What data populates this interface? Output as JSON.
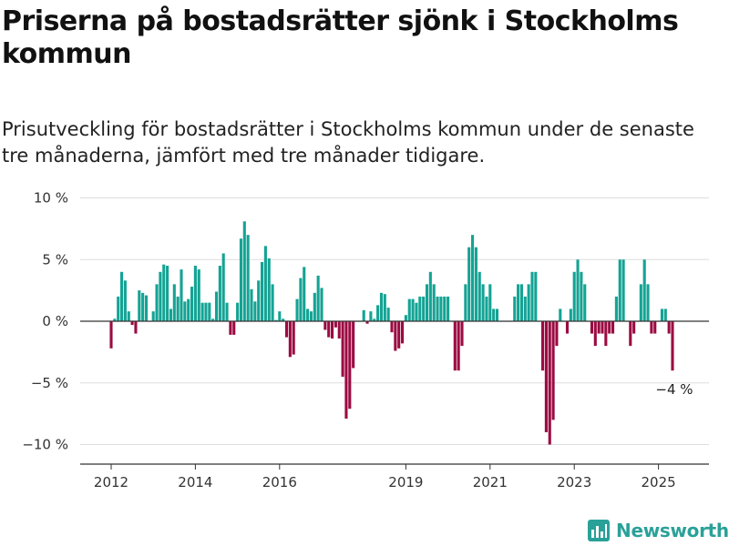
{
  "header": {
    "title": "Priserna på bostadsrätter sjönk i Stockholms kommun",
    "subtitle": "Prisutveckling för bostadsrätter i Stockholms kommun under de senaste tre månaderna, jämfört med tre månader tidigare."
  },
  "logo": {
    "text": "Newsworthy",
    "icon": "bar-chart-logo-icon"
  },
  "colors": {
    "positive": "#14a394",
    "negative": "#9b0b42",
    "grid": "#dddddd",
    "axis": "#333333"
  },
  "chart_data": {
    "type": "bar",
    "title": "Priserna på bostadsrätter sjönk i Stockholms kommun",
    "subtitle": "Prisutveckling för bostadsrätter i Stockholms kommun under de senaste tre månaderna, jämfört med tre månader tidigare.",
    "x_start": "2012-01",
    "x_ticks": [
      2012,
      2014,
      2016,
      2019,
      2021,
      2023,
      2025
    ],
    "y_ticks": [
      10,
      5,
      0,
      -5,
      -10
    ],
    "y_tick_labels": [
      "10 %",
      "5 %",
      "0 %",
      "−5 %",
      "−10 %"
    ],
    "ylim": [
      -12,
      10
    ],
    "ylabel": "",
    "xlabel": "",
    "annotation": "−4 %",
    "grid": true,
    "values": [
      -2.2,
      0.2,
      2.0,
      4.0,
      3.3,
      0.8,
      -0.3,
      -1.0,
      2.5,
      2.3,
      2.1,
      0.0,
      0.8,
      3.0,
      4.0,
      4.6,
      4.5,
      1.0,
      3.0,
      2.0,
      4.2,
      1.6,
      1.8,
      2.8,
      4.5,
      4.2,
      1.5,
      1.5,
      1.5,
      0.2,
      2.4,
      4.5,
      5.5,
      1.5,
      -1.1,
      -1.1,
      1.5,
      6.7,
      8.1,
      7.0,
      2.6,
      1.6,
      3.3,
      4.8,
      6.1,
      5.1,
      3.0,
      0.1,
      0.8,
      0.2,
      -1.3,
      -2.9,
      -2.7,
      1.8,
      3.5,
      4.4,
      1.0,
      0.8,
      2.3,
      3.7,
      2.7,
      -0.7,
      -1.3,
      -1.4,
      -0.5,
      -1.4,
      -4.5,
      -7.9,
      -7.1,
      -3.8,
      0.0,
      0.0,
      0.9,
      -0.2,
      0.8,
      0.2,
      1.3,
      2.3,
      2.2,
      1.1,
      -0.9,
      -2.4,
      -2.2,
      -1.8,
      0.5,
      1.8,
      1.8,
      1.5,
      2.0,
      2.0,
      3.0,
      4.0,
      3.0,
      2.0,
      2.0,
      2.0,
      2.0,
      0.0,
      -4.0,
      -4.0,
      -2.0,
      3.0,
      6.0,
      7.0,
      6.0,
      4.0,
      3.0,
      2.0,
      3.0,
      1.0,
      1.0,
      0.0,
      0.0,
      0.0,
      0.0,
      2.0,
      3.0,
      3.0,
      2.0,
      3.0,
      4.0,
      4.0,
      0.0,
      -4.0,
      -9.0,
      -10.0,
      -8.0,
      -2.0,
      1.0,
      0.0,
      -1.0,
      1.0,
      4.0,
      5.0,
      4.0,
      3.0,
      0.0,
      -1.0,
      -2.0,
      -1.0,
      -1.0,
      -2.0,
      -1.0,
      -1.0,
      2.0,
      5.0,
      5.0,
      0.0,
      -2.0,
      -1.0,
      0.0,
      3.0,
      5.0,
      3.0,
      -1.0,
      -1.0,
      0.0,
      1.0,
      1.0,
      -1.0,
      -4.0
    ]
  }
}
